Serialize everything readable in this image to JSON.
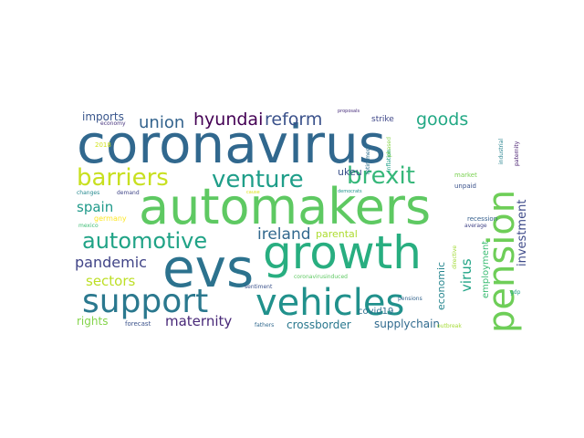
{
  "words": [
    {
      "text": "coronavirus",
      "color": "#31688e"
    },
    {
      "text": "automakers",
      "color": "#5ec962"
    },
    {
      "text": "evs",
      "color": "#2c728e"
    },
    {
      "text": "growth",
      "color": "#28ae80"
    },
    {
      "text": "vehicles",
      "color": "#21918c"
    },
    {
      "text": "support",
      "color": "#2a788e"
    },
    {
      "text": "pension",
      "color": "#6ece58"
    },
    {
      "text": "barriers",
      "color": "#c8e020"
    },
    {
      "text": "venture",
      "color": "#1f9e89"
    },
    {
      "text": "brexit",
      "color": "#35b779"
    },
    {
      "text": "automotive",
      "color": "#20a386"
    },
    {
      "text": "hyundai",
      "color": "#440154"
    },
    {
      "text": "reform",
      "color": "#3b528b"
    },
    {
      "text": "goods",
      "color": "#22a884"
    },
    {
      "text": "union",
      "color": "#33638d"
    },
    {
      "text": "ireland",
      "color": "#31688e"
    },
    {
      "text": "spain",
      "color": "#1f9a8a"
    },
    {
      "text": "virus",
      "color": "#20a486"
    },
    {
      "text": "investment",
      "color": "#3e4a89"
    },
    {
      "text": "pandemic",
      "color": "#414487"
    },
    {
      "text": "sectors",
      "color": "#bddf26"
    },
    {
      "text": "maternity",
      "color": "#482878"
    },
    {
      "text": "imports",
      "color": "#39568c"
    },
    {
      "text": "rights",
      "color": "#84d44b"
    },
    {
      "text": "crossborder",
      "color": "#2a788e"
    },
    {
      "text": "supplychain",
      "color": "#306a8e"
    },
    {
      "text": "ukeu",
      "color": "#3b528b"
    },
    {
      "text": "parental",
      "color": "#addc30"
    },
    {
      "text": "economic",
      "color": "#25858e"
    },
    {
      "text": "employment",
      "color": "#3dbc74"
    },
    {
      "text": "covid19",
      "color": "#2d708e"
    },
    {
      "text": "strike",
      "color": "#3f4788"
    },
    {
      "text": "recession",
      "color": "#355f8d"
    },
    {
      "text": "germany",
      "color": "#fde725"
    },
    {
      "text": "economy",
      "color": "#46337e"
    },
    {
      "text": "proposals",
      "color": "#472d7b"
    },
    {
      "text": "retirement",
      "color": "#2e6f8e"
    },
    {
      "text": "phased",
      "color": "#86d549"
    },
    {
      "text": "inflation",
      "color": "#1fa088"
    },
    {
      "text": "industrial",
      "color": "#26828e"
    },
    {
      "text": "paternity",
      "color": "#481f70"
    },
    {
      "text": "2018",
      "color": "#d2e21b"
    },
    {
      "text": "market",
      "color": "#7ad151"
    },
    {
      "text": "unpaid",
      "color": "#3b528b"
    },
    {
      "text": "changes",
      "color": "#23888e"
    },
    {
      "text": "demand",
      "color": "#404688"
    },
    {
      "text": "cause",
      "color": "#dde318"
    },
    {
      "text": "democrats",
      "color": "#20928c"
    },
    {
      "text": "average",
      "color": "#414487"
    },
    {
      "text": "mexico",
      "color": "#3dbc74"
    },
    {
      "text": "directive",
      "color": "#a2da37"
    },
    {
      "text": "coronavirusinduced",
      "color": "#5ec962"
    },
    {
      "text": "sentiment",
      "color": "#3b528b"
    },
    {
      "text": "pensions",
      "color": "#33638d"
    },
    {
      "text": "gdp",
      "color": "#1fa187"
    },
    {
      "text": "forecast",
      "color": "#3b528b"
    },
    {
      "text": "fathers",
      "color": "#31688e"
    },
    {
      "text": "outbreak",
      "color": "#a5db36"
    }
  ]
}
